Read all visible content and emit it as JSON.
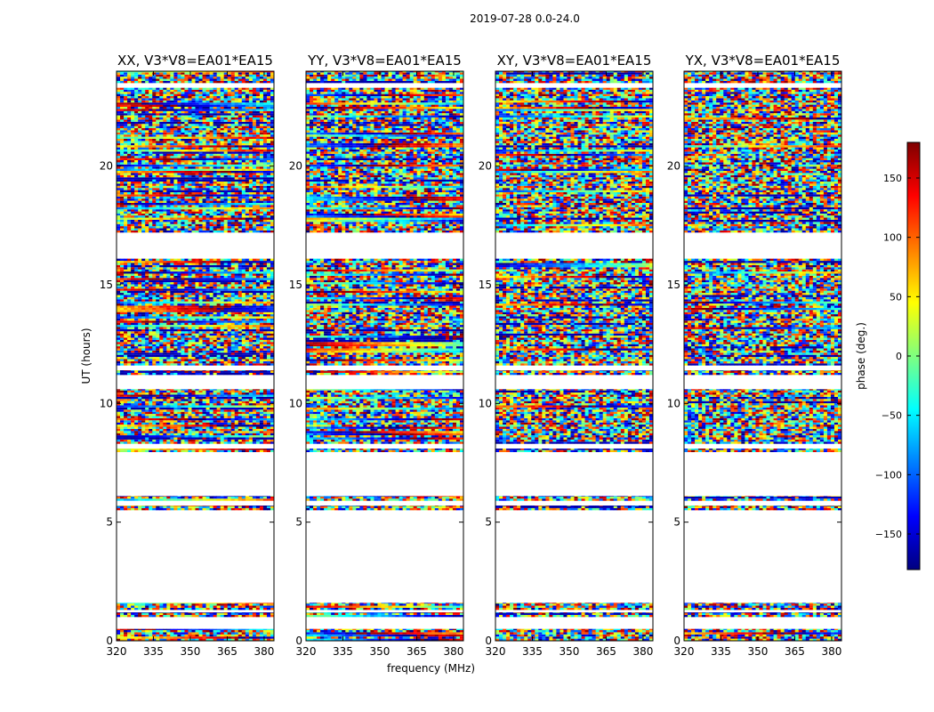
{
  "figure": {
    "suptitle": "2019-07-28 0.0-24.0"
  },
  "colorbar": {
    "label": "phase (deg.)",
    "ticks": [
      -150,
      -100,
      -50,
      0,
      50,
      100,
      150
    ],
    "tick_labels": [
      "−150",
      "−100",
      "−50",
      "0",
      "50",
      "100",
      "150"
    ],
    "range": [
      -180,
      180
    ],
    "colormap": "jet",
    "colors": [
      "#00007f",
      "#0000ff",
      "#007fff",
      "#00ffff",
      "#7fff7f",
      "#ffff00",
      "#ff7f00",
      "#ff0000",
      "#7f0000"
    ]
  },
  "chart_data": [
    {
      "type": "heatmap",
      "title": "XX, V3*V8=EA01*EA15",
      "xlabel": "",
      "ylabel": "UT (hours)",
      "xlim": [
        320,
        384
      ],
      "ylim": [
        0,
        24
      ],
      "xticks": [
        320,
        335,
        350,
        365,
        380
      ],
      "yticks": [
        0,
        5,
        10,
        15,
        20
      ],
      "value": "phase (deg.)"
    },
    {
      "type": "heatmap",
      "title": "YY, V3*V8=EA01*EA15",
      "xlabel": "frequency (MHz)",
      "ylabel": "",
      "xlim": [
        320,
        384
      ],
      "ylim": [
        0,
        24
      ],
      "xticks": [
        320,
        335,
        350,
        365,
        380
      ],
      "yticks": [
        0,
        5,
        10,
        15,
        20
      ],
      "value": "phase (deg.)"
    },
    {
      "type": "heatmap",
      "title": "XY, V3*V8=EA01*EA15",
      "xlabel": "",
      "ylabel": "",
      "xlim": [
        320,
        384
      ],
      "ylim": [
        0,
        24
      ],
      "xticks": [
        320,
        335,
        350,
        365,
        380
      ],
      "yticks": [
        0,
        5,
        10,
        15,
        20
      ],
      "value": "phase (deg.)"
    },
    {
      "type": "heatmap",
      "title": "YX, V3*V8=EA01*EA15",
      "xlabel": "",
      "ylabel": "",
      "xlim": [
        320,
        384
      ],
      "ylim": [
        0,
        24
      ],
      "xticks": [
        320,
        335,
        350,
        365,
        380
      ],
      "yticks": [
        0,
        5,
        10,
        15,
        20
      ],
      "value": "phase (deg.)"
    }
  ],
  "data_bands_hours": [
    [
      0.0,
      0.5
    ],
    [
      1.0,
      1.2
    ],
    [
      1.3,
      1.6
    ],
    [
      5.5,
      5.7
    ],
    [
      5.9,
      6.1
    ],
    [
      7.95,
      8.1
    ],
    [
      8.3,
      10.6
    ],
    [
      11.2,
      11.4
    ],
    [
      11.6,
      16.1
    ],
    [
      17.2,
      18.0
    ],
    [
      18.0,
      23.3
    ],
    [
      23.5,
      24.0
    ]
  ]
}
